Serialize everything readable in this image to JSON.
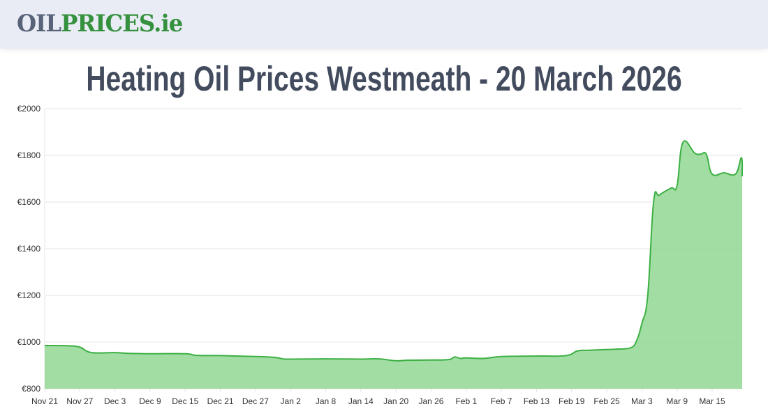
{
  "header": {
    "logo_part1": "OIL",
    "logo_part2": "PRICES.ie"
  },
  "title": "Heating Oil Prices Westmeath - 20 March 2026",
  "chart_data": {
    "type": "area",
    "title": "Heating Oil Prices Westmeath - 20 March 2026",
    "xlabel": "",
    "ylabel": "",
    "ylim": [
      800,
      2000
    ],
    "yticks": [
      "€800",
      "€1000",
      "€1200",
      "€1400",
      "€1600",
      "€1800",
      "€2000"
    ],
    "ytick_values": [
      800,
      1000,
      1200,
      1400,
      1600,
      1800,
      2000
    ],
    "xticks": [
      "Nov 21",
      "Nov 27",
      "Dec 3",
      "Dec 9",
      "Dec 15",
      "Dec 21",
      "Dec 27",
      "Jan 2",
      "Jan 8",
      "Jan 14",
      "Jan 20",
      "Jan 26",
      "Feb 1",
      "Feb 7",
      "Feb 13",
      "Feb 19",
      "Feb 25",
      "Mar 3",
      "Mar 9",
      "Mar 15"
    ],
    "xrange": [
      "2025-11-21",
      "2026-03-20"
    ],
    "grid": true,
    "colors": {
      "line": "#3cb043",
      "fill": "#92d793",
      "grid": "#e5e5e5"
    },
    "points": [
      [
        "2025-11-21",
        985
      ],
      [
        "2025-11-25",
        984
      ],
      [
        "2025-11-27",
        978
      ],
      [
        "2025-11-29",
        955
      ],
      [
        "2025-12-03",
        955
      ],
      [
        "2025-12-05",
        952
      ],
      [
        "2025-12-09",
        950
      ],
      [
        "2025-12-15",
        950
      ],
      [
        "2025-12-17",
        943
      ],
      [
        "2025-12-21",
        942
      ],
      [
        "2025-12-27",
        938
      ],
      [
        "2025-12-30",
        935
      ],
      [
        "2026-01-01",
        927
      ],
      [
        "2026-01-02",
        927
      ],
      [
        "2026-01-08",
        928
      ],
      [
        "2026-01-14",
        927
      ],
      [
        "2026-01-17",
        928
      ],
      [
        "2026-01-20",
        920
      ],
      [
        "2026-01-22",
        922
      ],
      [
        "2026-01-26",
        923
      ],
      [
        "2026-01-29",
        925
      ],
      [
        "2026-01-30",
        936
      ],
      [
        "2026-01-31",
        930
      ],
      [
        "2026-02-01",
        932
      ],
      [
        "2026-02-04",
        930
      ],
      [
        "2026-02-07",
        938
      ],
      [
        "2026-02-13",
        940
      ],
      [
        "2026-02-18",
        942
      ],
      [
        "2026-02-20",
        962
      ],
      [
        "2026-02-22",
        965
      ],
      [
        "2026-02-25",
        968
      ],
      [
        "2026-02-27",
        970
      ],
      [
        "2026-03-01",
        975
      ],
      [
        "2026-03-02",
        1000
      ],
      [
        "2026-03-03",
        1080
      ],
      [
        "2026-03-04",
        1200
      ],
      [
        "2026-03-05",
        1600
      ],
      [
        "2026-03-06",
        1630
      ],
      [
        "2026-03-08",
        1660
      ],
      [
        "2026-03-09",
        1670
      ],
      [
        "2026-03-10",
        1855
      ],
      [
        "2026-03-12",
        1810
      ],
      [
        "2026-03-13",
        1805
      ],
      [
        "2026-03-14",
        1805
      ],
      [
        "2026-03-15",
        1720
      ],
      [
        "2026-03-17",
        1725
      ],
      [
        "2026-03-19",
        1720
      ],
      [
        "2026-03-20",
        1790
      ],
      [
        "2026-03-21",
        1710
      ]
    ]
  }
}
